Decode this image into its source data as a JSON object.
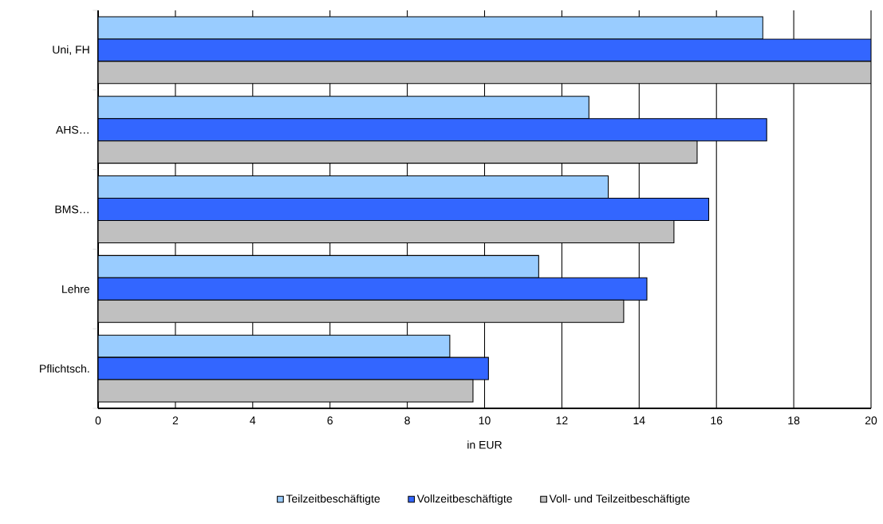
{
  "chart_data": {
    "type": "bar",
    "orientation": "horizontal",
    "xlabel": "in EUR",
    "categories": [
      "Uni, FH",
      "AHS…",
      "BMS…",
      "Lehre",
      "Pflichtsch."
    ],
    "series": [
      {
        "name": "Teilzeitbeschäftigte",
        "color": "#99ccff",
        "values": [
          17.2,
          12.7,
          13.2,
          11.4,
          9.1
        ]
      },
      {
        "name": "Vollzeitbeschäftigte",
        "color": "#3366ff",
        "values": [
          20,
          17.3,
          15.8,
          14.2,
          10.1
        ]
      },
      {
        "name": "Voll- und Teilzeitbeschäftigte",
        "color": "#c0c0c0",
        "values": [
          20,
          15.5,
          14.9,
          13.6,
          9.7
        ]
      }
    ],
    "xlim": [
      0,
      20
    ],
    "xticks": [
      0,
      2,
      4,
      6,
      8,
      10,
      12,
      14,
      16,
      18,
      20
    ],
    "grid": "x",
    "legend": "bottom"
  }
}
